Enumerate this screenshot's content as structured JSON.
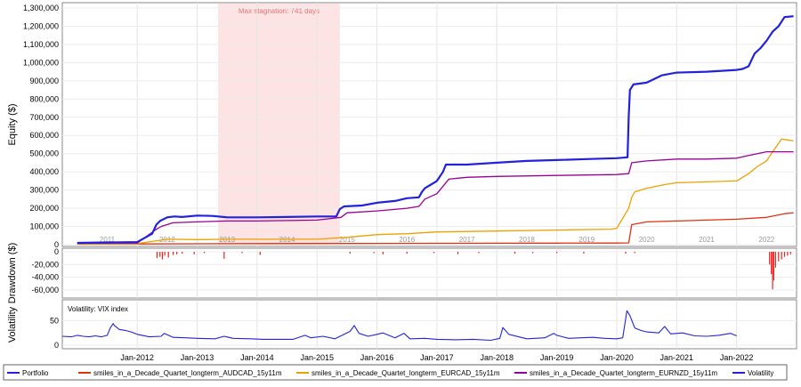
{
  "chart_data": [
    {
      "type": "line",
      "panel": "equity",
      "ylabel": "Equity ($)",
      "ylim": [
        0,
        1300000
      ],
      "y_ticks": [
        "0",
        "100,000",
        "200,000",
        "300,000",
        "400,000",
        "500,000",
        "600,000",
        "700,000",
        "800,000",
        "900,000",
        "1,000,000",
        "1,100,000",
        "1,200,000",
        "1,300,000"
      ],
      "y_tick_values": [
        0,
        100000,
        200000,
        300000,
        400000,
        500000,
        600000,
        700000,
        800000,
        900000,
        1000000,
        1100000,
        1200000,
        1300000
      ],
      "year_labels": [
        "2011",
        "2012",
        "2013",
        "2014",
        "2015",
        "2016",
        "2017",
        "2018",
        "2019",
        "2020",
        "2021",
        "2022"
      ],
      "year_label_positions": [
        2011.5,
        2012.5,
        2013.5,
        2014.5,
        2015.5,
        2016.5,
        2017.5,
        2018.5,
        2019.5,
        2020.5,
        2021.5,
        2022.5
      ],
      "annotation": "Max stagnation: 741 days",
      "stagnation_range": [
        2013.35,
        2015.38
      ],
      "grid": true,
      "series": [
        {
          "name": "Portfolio",
          "color": "#2222dd",
          "x": [
            2011.0,
            2011.5,
            2012.0,
            2012.25,
            2012.32,
            2012.38,
            2012.5,
            2012.62,
            2012.75,
            2013.0,
            2013.25,
            2013.5,
            2014.0,
            2014.5,
            2015.0,
            2015.32,
            2015.38,
            2015.45,
            2015.75,
            2016.0,
            2016.3,
            2016.5,
            2016.7,
            2016.75,
            2016.8,
            2016.9,
            2017.0,
            2017.1,
            2017.15,
            2017.5,
            2018.0,
            2018.5,
            2019.0,
            2019.5,
            2020.0,
            2020.18,
            2020.2,
            2020.22,
            2020.28,
            2020.5,
            2020.75,
            2021.0,
            2021.5,
            2022.0,
            2022.1,
            2022.2,
            2022.3,
            2022.4,
            2022.5,
            2022.6,
            2022.7,
            2022.8,
            2022.95
          ],
          "y": [
            10000,
            12000,
            14000,
            60000,
            110000,
            130000,
            150000,
            155000,
            152000,
            160000,
            158000,
            150000,
            150000,
            152000,
            155000,
            155000,
            195000,
            210000,
            215000,
            230000,
            240000,
            255000,
            260000,
            290000,
            310000,
            330000,
            350000,
            400000,
            440000,
            440000,
            450000,
            460000,
            465000,
            470000,
            475000,
            480000,
            700000,
            850000,
            880000,
            890000,
            930000,
            945000,
            950000,
            960000,
            965000,
            980000,
            1050000,
            1080000,
            1120000,
            1170000,
            1200000,
            1250000,
            1255000
          ]
        },
        {
          "name": "smiles_in_a_Decade_Quartet_longterm_AUDCAD_15y11m",
          "color": "#dd3311",
          "x": [
            2011.0,
            2012.0,
            2013.0,
            2014.0,
            2015.0,
            2016.0,
            2017.0,
            2018.0,
            2019.0,
            2020.0,
            2020.2,
            2020.25,
            2020.5,
            2021.0,
            2021.5,
            2022.0,
            2022.5,
            2022.8,
            2022.95
          ],
          "y": [
            3000,
            4000,
            5000,
            6000,
            6500,
            7000,
            7500,
            8000,
            8500,
            9000,
            10000,
            110000,
            125000,
            130000,
            135000,
            140000,
            150000,
            170000,
            175000
          ]
        },
        {
          "name": "smiles_in_a_Decade_Quartet_longterm_EURCAD_15y11m",
          "color": "#f0a000",
          "x": [
            2011.0,
            2012.0,
            2012.3,
            2012.5,
            2013.0,
            2013.5,
            2014.0,
            2015.0,
            2015.5,
            2016.0,
            2016.5,
            2017.0,
            2018.0,
            2019.0,
            2019.9,
            2020.0,
            2020.2,
            2020.25,
            2020.3,
            2020.5,
            2020.8,
            2021.0,
            2021.5,
            2022.0,
            2022.2,
            2022.35,
            2022.5,
            2022.6,
            2022.75,
            2022.95
          ],
          "y": [
            5000,
            6000,
            20000,
            30000,
            28000,
            30000,
            30000,
            30000,
            40000,
            55000,
            60000,
            70000,
            75000,
            80000,
            85000,
            90000,
            200000,
            260000,
            290000,
            310000,
            330000,
            340000,
            345000,
            350000,
            390000,
            430000,
            460000,
            510000,
            580000,
            570000
          ]
        },
        {
          "name": "smiles_in_a_Decade_Quartet_longterm_EURNZD_15y11m",
          "color": "#990099",
          "x": [
            2011.0,
            2012.0,
            2012.3,
            2012.4,
            2012.6,
            2013.0,
            2013.5,
            2014.0,
            2015.0,
            2015.4,
            2015.5,
            2016.0,
            2016.5,
            2016.7,
            2016.8,
            2017.0,
            2017.2,
            2017.5,
            2018.0,
            2019.0,
            2020.0,
            2020.2,
            2020.25,
            2020.5,
            2021.0,
            2021.5,
            2022.0,
            2022.2,
            2022.5,
            2022.95
          ],
          "y": [
            8000,
            9000,
            80000,
            100000,
            120000,
            125000,
            130000,
            130000,
            135000,
            150000,
            175000,
            185000,
            200000,
            210000,
            250000,
            280000,
            360000,
            370000,
            375000,
            380000,
            385000,
            390000,
            450000,
            460000,
            470000,
            470000,
            475000,
            490000,
            510000,
            510000
          ]
        }
      ]
    },
    {
      "type": "bar",
      "panel": "drawdown",
      "ylabel": "Drawdown ($)",
      "ylim": [
        -70000,
        0
      ],
      "y_ticks": [
        "0",
        "-20,000",
        "-40,000",
        "-60,000"
      ],
      "y_tick_values": [
        0,
        -20000,
        -40000,
        -60000
      ],
      "color": "#ee2222",
      "x": [
        2012.33,
        2012.38,
        2012.42,
        2012.46,
        2012.52,
        2012.6,
        2012.66,
        2012.75,
        2012.95,
        2013.12,
        2013.45,
        2013.75,
        2014.05,
        2015.55,
        2015.95,
        2016.1,
        2016.5,
        2016.95,
        2017.35,
        2017.7,
        2018.3,
        2018.6,
        2019.0,
        2019.45,
        2020.15,
        2020.3,
        2022.55,
        2022.58,
        2022.6,
        2022.62,
        2022.65,
        2022.7,
        2022.75,
        2022.8,
        2022.85,
        2022.9
      ],
      "values": [
        -10000,
        -8000,
        -12000,
        -6000,
        -9000,
        -5000,
        -4000,
        -3000,
        -4000,
        -2000,
        -11000,
        -2000,
        -5000,
        -3000,
        -2000,
        -4000,
        -3000,
        -2000,
        -4000,
        -2000,
        -3000,
        -2000,
        -2000,
        -3000,
        -3000,
        -2000,
        -20000,
        -35000,
        -59000,
        -45000,
        -25000,
        -15000,
        -12000,
        -8000,
        -6000,
        -4000
      ]
    },
    {
      "type": "line",
      "panel": "volatility",
      "ylabel": "Volatility",
      "title": "Volatility: VIX index",
      "ylim": [
        0,
        85
      ],
      "y_ticks": [
        "0",
        "50"
      ],
      "y_tick_values": [
        0,
        50
      ],
      "x_ticks": [
        "Jan-2012",
        "Jan-2013",
        "Jan-2014",
        "Jan-2015",
        "Jan-2016",
        "Jan-2017",
        "Jan-2018",
        "Jan-2019",
        "Jan-2020",
        "Jan-2021",
        "Jan-2022"
      ],
      "x_tick_values": [
        2012,
        2013,
        2014,
        2015,
        2016,
        2017,
        2018,
        2019,
        2020,
        2021,
        2022
      ],
      "xlim": [
        2010.75,
        2023.0
      ],
      "series": [
        {
          "name": "Volatility",
          "color": "#2222dd",
          "x": [
            2010.75,
            2010.9,
            2011.0,
            2011.1,
            2011.2,
            2011.3,
            2011.4,
            2011.5,
            2011.55,
            2011.6,
            2011.62,
            2011.7,
            2011.8,
            2011.9,
            2012.0,
            2012.2,
            2012.4,
            2012.45,
            2012.6,
            2012.8,
            2013.0,
            2013.3,
            2013.45,
            2013.6,
            2013.9,
            2014.1,
            2014.3,
            2014.6,
            2014.8,
            2014.9,
            2015.1,
            2015.3,
            2015.55,
            2015.62,
            2015.7,
            2015.85,
            2016.0,
            2016.1,
            2016.3,
            2016.45,
            2016.55,
            2016.8,
            2017.0,
            2017.3,
            2017.6,
            2017.9,
            2018.05,
            2018.1,
            2018.2,
            2018.5,
            2018.8,
            2018.95,
            2019.0,
            2019.2,
            2019.4,
            2019.6,
            2019.8,
            2020.0,
            2020.1,
            2020.17,
            2020.22,
            2020.3,
            2020.4,
            2020.5,
            2020.7,
            2020.8,
            2020.9,
            2021.1,
            2021.3,
            2021.5,
            2021.7,
            2021.9,
            2022.0
          ],
          "y": [
            18,
            17,
            20,
            18,
            17,
            19,
            17,
            20,
            35,
            44,
            40,
            32,
            30,
            27,
            22,
            17,
            18,
            24,
            16,
            15,
            14,
            13,
            18,
            14,
            13,
            12,
            12,
            12,
            20,
            15,
            18,
            13,
            28,
            40,
            24,
            18,
            22,
            25,
            15,
            24,
            13,
            14,
            12,
            11,
            12,
            10,
            14,
            36,
            22,
            13,
            15,
            24,
            20,
            14,
            15,
            16,
            14,
            13,
            15,
            70,
            60,
            35,
            30,
            27,
            25,
            38,
            23,
            25,
            19,
            18,
            20,
            24,
            19
          ]
        }
      ]
    }
  ],
  "legend": {
    "items": [
      {
        "label": "Portfolio",
        "color": "#2222dd"
      },
      {
        "label": "smiles_in_a_Decade_Quartet_longterm_AUDCAD_15y11m",
        "color": "#dd3311"
      },
      {
        "label": "smiles_in_a_Decade_Quartet_longterm_EURCAD_15y11m",
        "color": "#f0a000"
      },
      {
        "label": "smiles_in_a_Decade_Quartet_longterm_EURNZD_15y11m",
        "color": "#990099"
      },
      {
        "label": "Volatility",
        "color": "#2222dd"
      }
    ]
  }
}
